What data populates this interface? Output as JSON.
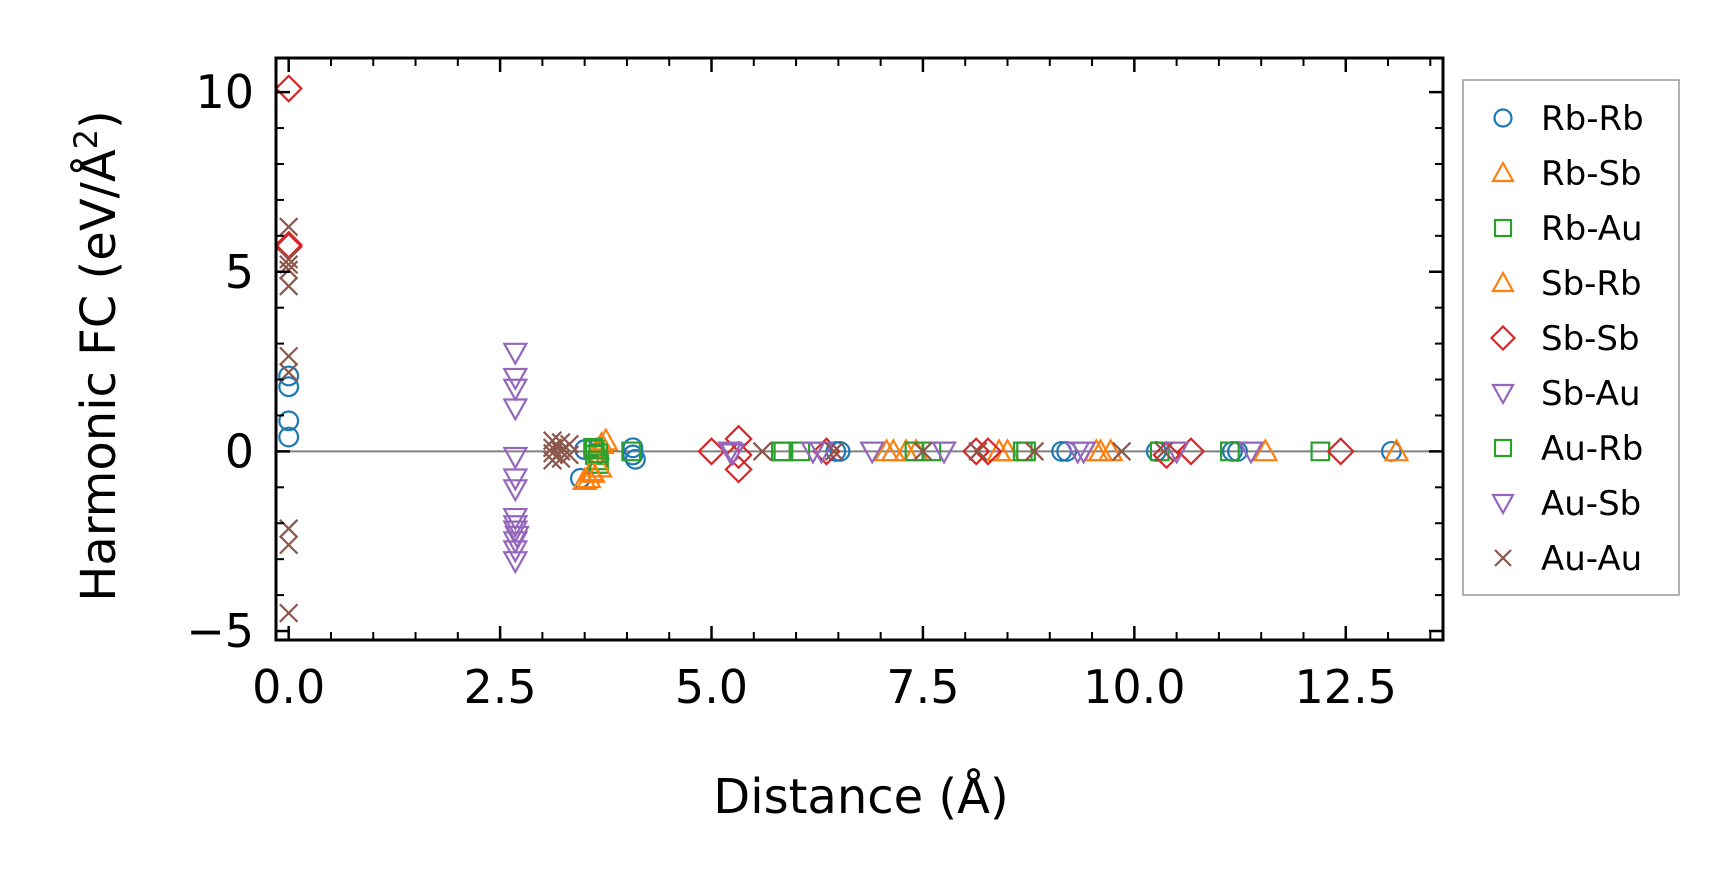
{
  "chart_data": {
    "type": "scatter",
    "xlabel": "Distance (Å)",
    "ylabel_prefix": "Harmonic FC (eV/Å",
    "ylabel_sup": "2",
    "ylabel_suffix": ")",
    "xlim": [
      -0.15,
      13.65
    ],
    "ylim": [
      -5.25,
      10.95
    ],
    "xticks": [
      0.0,
      2.5,
      5.0,
      7.5,
      10.0,
      12.5
    ],
    "xtick_labels": [
      "0.0",
      "2.5",
      "5.0",
      "7.5",
      "10.0",
      "12.5"
    ],
    "yticks": [
      -5,
      0,
      5,
      10
    ],
    "ytick_labels": [
      "−5",
      "0",
      "5",
      "10"
    ],
    "zero_line": 0,
    "legend_position": "outside right",
    "series": [
      {
        "name": "Rb-Rb",
        "marker": "circle",
        "color": "#1f77b4",
        "points": [
          [
            0,
            2.1
          ],
          [
            0,
            1.8
          ],
          [
            0,
            0.85
          ],
          [
            0,
            0.4
          ],
          [
            3.45,
            -0.75
          ],
          [
            3.5,
            0.05
          ],
          [
            4.07,
            0.1
          ],
          [
            4.07,
            -0.1
          ],
          [
            4.1,
            -0.22
          ],
          [
            6.47,
            0
          ],
          [
            6.52,
            0
          ],
          [
            9.14,
            0
          ],
          [
            9.2,
            0
          ],
          [
            10.26,
            0
          ],
          [
            11.16,
            0
          ],
          [
            11.22,
            0
          ],
          [
            13.04,
            0
          ]
        ]
      },
      {
        "name": "Rb-Sb",
        "marker": "triangle-up",
        "color": "#ff7f0e",
        "points": [
          [
            3.5,
            -0.8
          ],
          [
            3.55,
            -0.75
          ],
          [
            3.6,
            -0.6
          ],
          [
            3.65,
            0.05
          ],
          [
            3.7,
            0.2
          ],
          [
            3.75,
            0.3
          ],
          [
            7.07,
            0
          ],
          [
            7.3,
            0
          ],
          [
            7.42,
            0
          ],
          [
            8.5,
            0
          ],
          [
            9.6,
            0
          ],
          [
            9.72,
            0
          ],
          [
            11.55,
            0
          ],
          [
            13.1,
            0
          ]
        ]
      },
      {
        "name": "Rb-Au",
        "marker": "square",
        "color": "#2ca02c",
        "points": [
          [
            3.6,
            0.1
          ],
          [
            3.62,
            -0.1
          ],
          [
            3.65,
            -0.25
          ],
          [
            3.67,
            -0.35
          ],
          [
            4.05,
            0
          ],
          [
            5.82,
            0
          ],
          [
            6.05,
            0
          ],
          [
            7.4,
            0
          ],
          [
            7.6,
            0
          ],
          [
            8.72,
            0
          ],
          [
            10.3,
            0
          ],
          [
            11.13,
            0
          ],
          [
            12.2,
            0
          ]
        ]
      },
      {
        "name": "Sb-Rb",
        "marker": "triangle-up",
        "color": "#ff7f0e",
        "points": [
          [
            3.58,
            -0.55
          ],
          [
            3.68,
            -0.45
          ],
          [
            7.15,
            0
          ],
          [
            8.4,
            0
          ],
          [
            9.55,
            0
          ]
        ]
      },
      {
        "name": "Sb-Sb",
        "marker": "diamond",
        "color": "#d62728",
        "points": [
          [
            0,
            10.1
          ],
          [
            0,
            5.75
          ],
          [
            0,
            5.7
          ],
          [
            5.0,
            0
          ],
          [
            5.32,
            0.35
          ],
          [
            5.32,
            -0.1
          ],
          [
            5.32,
            -0.5
          ],
          [
            6.36,
            0
          ],
          [
            8.13,
            0
          ],
          [
            8.27,
            0
          ],
          [
            10.38,
            -0.1
          ],
          [
            10.67,
            0
          ],
          [
            12.44,
            0
          ]
        ]
      },
      {
        "name": "Sb-Au",
        "marker": "triangle-down",
        "color": "#9467bd",
        "points": [
          [
            2.68,
            2.75
          ],
          [
            2.68,
            2.05
          ],
          [
            2.68,
            1.75
          ],
          [
            2.68,
            1.2
          ],
          [
            2.68,
            -0.15
          ],
          [
            2.68,
            -0.75
          ],
          [
            2.68,
            -1.05
          ],
          [
            2.68,
            -1.85
          ],
          [
            2.68,
            -2.05
          ],
          [
            2.68,
            -2.2
          ],
          [
            2.68,
            -2.5
          ],
          [
            2.68,
            -2.75
          ],
          [
            2.68,
            -3.05
          ],
          [
            5.22,
            0
          ],
          [
            6.2,
            0
          ],
          [
            6.9,
            0
          ],
          [
            7.75,
            0
          ],
          [
            9.4,
            0
          ],
          [
            10.5,
            0
          ]
        ]
      },
      {
        "name": "Au-Rb",
        "marker": "square",
        "color": "#2ca02c",
        "points": [
          [
            3.62,
            0.05
          ],
          [
            3.66,
            -0.05
          ],
          [
            5.85,
            0
          ],
          [
            8.68,
            0
          ]
        ]
      },
      {
        "name": "Au-Sb",
        "marker": "triangle-down",
        "color": "#9467bd",
        "points": [
          [
            2.7,
            -2.35
          ],
          [
            5.25,
            -0.05
          ],
          [
            6.3,
            0
          ],
          [
            9.33,
            0
          ],
          [
            11.38,
            0
          ]
        ]
      },
      {
        "name": "Au-Au",
        "marker": "x",
        "color": "#8c564b",
        "points": [
          [
            0,
            6.25
          ],
          [
            0,
            5.35
          ],
          [
            0,
            5.2
          ],
          [
            0,
            5.05
          ],
          [
            0,
            4.6
          ],
          [
            0,
            2.65
          ],
          [
            0,
            2.2
          ],
          [
            0,
            -2.15
          ],
          [
            0,
            -2.6
          ],
          [
            0,
            -4.5
          ],
          [
            3.12,
            0.3
          ],
          [
            3.12,
            0.1
          ],
          [
            3.12,
            -0.05
          ],
          [
            3.12,
            -0.25
          ],
          [
            3.22,
            0.25
          ],
          [
            3.22,
            0
          ],
          [
            3.22,
            -0.2
          ],
          [
            3.32,
            0.2
          ],
          [
            3.32,
            -0.1
          ],
          [
            5.6,
            0
          ],
          [
            6.45,
            0
          ],
          [
            7.5,
            0
          ],
          [
            8.15,
            0
          ],
          [
            8.82,
            0
          ],
          [
            9.85,
            0
          ],
          [
            10.35,
            0
          ]
        ]
      }
    ]
  }
}
